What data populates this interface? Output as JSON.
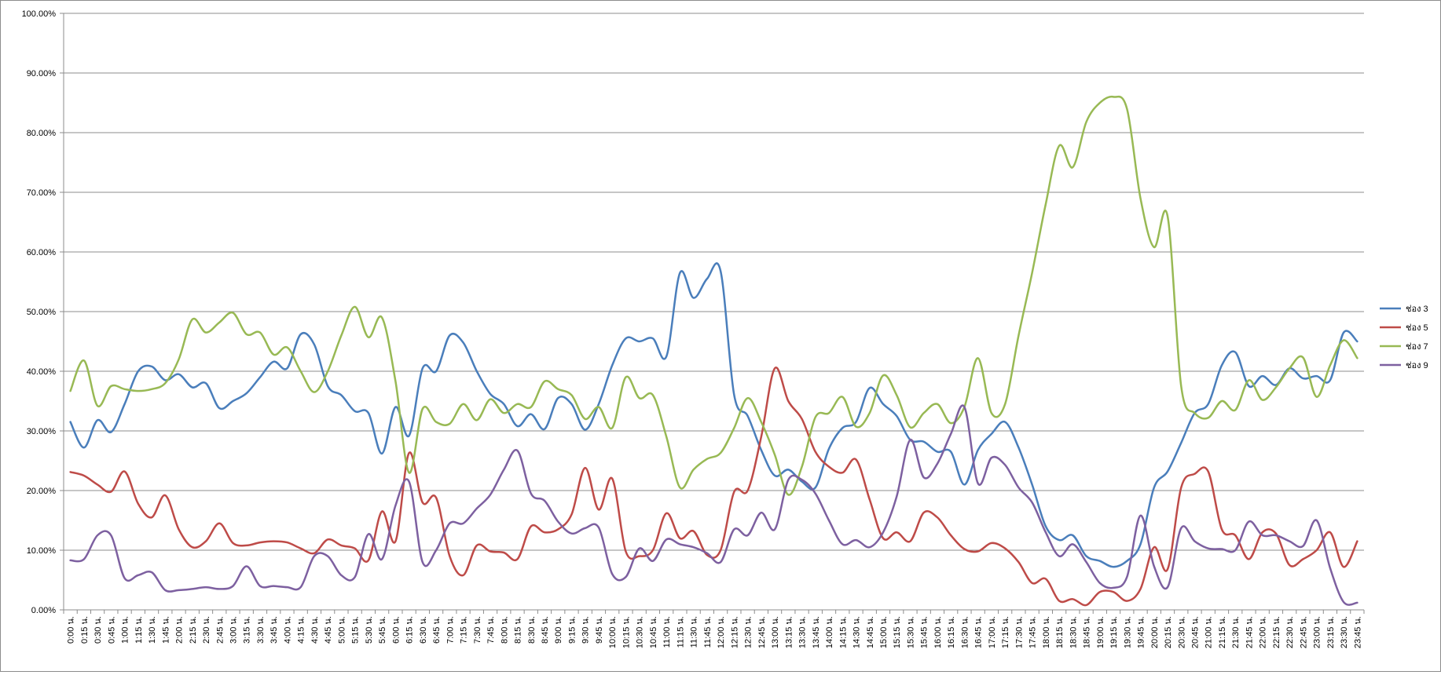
{
  "chart_data": {
    "type": "line",
    "ylim": [
      0,
      1
    ],
    "y_ticks": [
      "0.00%",
      "10.00%",
      "20.00%",
      "30.00%",
      "40.00%",
      "50.00%",
      "60.00%",
      "70.00%",
      "80.00%",
      "90.00%",
      "100.00%"
    ],
    "grid": true,
    "legend_position": "right",
    "categories": [
      "0:00 น.",
      "0:15 น.",
      "0:30 น.",
      "0:45 น.",
      "1:00 น.",
      "1:15 น.",
      "1:30 น.",
      "1:45 น.",
      "2:00 น.",
      "2:15 น.",
      "2:30 น.",
      "2:45 น.",
      "3:00 น.",
      "3:15 น.",
      "3:30 น.",
      "3:45 น.",
      "4:00 น.",
      "4:15 น.",
      "4:30 น.",
      "4:45 น.",
      "5:00 น.",
      "5:15 น.",
      "5:30 น.",
      "5:45 น.",
      "6:00 น.",
      "6:15 น.",
      "6:30 น.",
      "6:45 น.",
      "7:00 น.",
      "7:15 น.",
      "7:30 น.",
      "7:45 น.",
      "8:00 น.",
      "8:15 น.",
      "8:30 น.",
      "8:45 น.",
      "9:00 น.",
      "9:15 น.",
      "9:30 น.",
      "9:45 น.",
      "10:00 น.",
      "10:15 น.",
      "10:30 น.",
      "10:45 น.",
      "11:00 น.",
      "11:15 น.",
      "11:30 น.",
      "11:45 น.",
      "12:00 น.",
      "12:15 น.",
      "12:30 น.",
      "12:45 น.",
      "13:00 น.",
      "13:15 น.",
      "13:30 น.",
      "13:45 น.",
      "14:00 น.",
      "14:15 น.",
      "14:30 น.",
      "14:45 น.",
      "15:00 น.",
      "15:15 น.",
      "15:30 น.",
      "15:45 น.",
      "16:00 น.",
      "16:15 น.",
      "16:30 น.",
      "16:45 น.",
      "17:00 น.",
      "17:15 น.",
      "17:30 น.",
      "17:45 น.",
      "18:00 น.",
      "18:15 น.",
      "18:30 น.",
      "18:45 น.",
      "19:00 น.",
      "19:15 น.",
      "19:30 น.",
      "19:45 น.",
      "20:00 น.",
      "20:15 น.",
      "20:30 น.",
      "20:45 น.",
      "21:00 น.",
      "21:15 น.",
      "21:30 น.",
      "21:45 น.",
      "22:00 น.",
      "22:15 น.",
      "22:30 น.",
      "22:45 น.",
      "23:00 น.",
      "23:15 น.",
      "23:30 น.",
      "23:45 น."
    ],
    "series": [
      {
        "name": "ช่อง 3",
        "color": "#4a7ebb",
        "values": [
          0.315,
          0.272,
          0.318,
          0.298,
          0.345,
          0.4,
          0.408,
          0.385,
          0.395,
          0.373,
          0.38,
          0.338,
          0.35,
          0.363,
          0.39,
          0.416,
          0.405,
          0.462,
          0.445,
          0.375,
          0.36,
          0.333,
          0.33,
          0.262,
          0.34,
          0.292,
          0.405,
          0.4,
          0.46,
          0.448,
          0.4,
          0.362,
          0.345,
          0.308,
          0.328,
          0.303,
          0.355,
          0.345,
          0.302,
          0.345,
          0.41,
          0.455,
          0.45,
          0.455,
          0.425,
          0.565,
          0.523,
          0.555,
          0.568,
          0.36,
          0.325,
          0.268,
          0.225,
          0.235,
          0.215,
          0.205,
          0.27,
          0.305,
          0.315,
          0.372,
          0.345,
          0.325,
          0.285,
          0.282,
          0.265,
          0.265,
          0.21,
          0.268,
          0.295,
          0.315,
          0.272,
          0.21,
          0.14,
          0.117,
          0.125,
          0.09,
          0.082,
          0.072,
          0.082,
          0.11,
          0.205,
          0.232,
          0.28,
          0.33,
          0.345,
          0.41,
          0.432,
          0.375,
          0.392,
          0.377,
          0.405,
          0.388,
          0.392,
          0.385,
          0.465,
          0.45
        ]
      },
      {
        "name": "ช่อง 5",
        "color": "#be4b48",
        "values": [
          0.231,
          0.225,
          0.21,
          0.198,
          0.232,
          0.178,
          0.155,
          0.192,
          0.135,
          0.105,
          0.115,
          0.145,
          0.112,
          0.108,
          0.113,
          0.115,
          0.113,
          0.103,
          0.095,
          0.118,
          0.108,
          0.103,
          0.083,
          0.165,
          0.115,
          0.263,
          0.18,
          0.188,
          0.09,
          0.058,
          0.108,
          0.098,
          0.096,
          0.085,
          0.14,
          0.13,
          0.135,
          0.16,
          0.238,
          0.168,
          0.22,
          0.098,
          0.09,
          0.1,
          0.162,
          0.12,
          0.132,
          0.092,
          0.1,
          0.198,
          0.2,
          0.29,
          0.405,
          0.35,
          0.32,
          0.265,
          0.24,
          0.23,
          0.252,
          0.185,
          0.12,
          0.13,
          0.115,
          0.163,
          0.155,
          0.125,
          0.102,
          0.098,
          0.112,
          0.103,
          0.08,
          0.045,
          0.052,
          0.015,
          0.018,
          0.008,
          0.03,
          0.03,
          0.015,
          0.035,
          0.105,
          0.068,
          0.205,
          0.228,
          0.232,
          0.135,
          0.125,
          0.085,
          0.13,
          0.128,
          0.075,
          0.085,
          0.1,
          0.13,
          0.072,
          0.115
        ]
      },
      {
        "name": "ช่อง 7",
        "color": "#98b954",
        "values": [
          0.367,
          0.418,
          0.342,
          0.375,
          0.37,
          0.367,
          0.37,
          0.38,
          0.42,
          0.487,
          0.465,
          0.482,
          0.498,
          0.462,
          0.465,
          0.428,
          0.44,
          0.4,
          0.365,
          0.4,
          0.46,
          0.508,
          0.457,
          0.49,
          0.383,
          0.23,
          0.337,
          0.315,
          0.312,
          0.345,
          0.318,
          0.353,
          0.33,
          0.345,
          0.34,
          0.383,
          0.37,
          0.36,
          0.32,
          0.34,
          0.305,
          0.39,
          0.355,
          0.36,
          0.29,
          0.205,
          0.235,
          0.253,
          0.263,
          0.305,
          0.355,
          0.315,
          0.26,
          0.193,
          0.24,
          0.323,
          0.33,
          0.357,
          0.307,
          0.33,
          0.393,
          0.36,
          0.306,
          0.33,
          0.345,
          0.313,
          0.34,
          0.422,
          0.33,
          0.345,
          0.46,
          0.565,
          0.68,
          0.778,
          0.742,
          0.818,
          0.85,
          0.86,
          0.84,
          0.69,
          0.608,
          0.66,
          0.375,
          0.33,
          0.322,
          0.35,
          0.335,
          0.385,
          0.352,
          0.373,
          0.405,
          0.423,
          0.357,
          0.41,
          0.452,
          0.422
        ]
      },
      {
        "name": "ช่อง 9",
        "color": "#7d60a0",
        "values": [
          0.083,
          0.085,
          0.125,
          0.125,
          0.053,
          0.058,
          0.063,
          0.033,
          0.033,
          0.035,
          0.038,
          0.035,
          0.04,
          0.073,
          0.04,
          0.04,
          0.038,
          0.038,
          0.09,
          0.09,
          0.058,
          0.055,
          0.127,
          0.085,
          0.175,
          0.215,
          0.08,
          0.1,
          0.145,
          0.145,
          0.17,
          0.193,
          0.235,
          0.267,
          0.195,
          0.183,
          0.148,
          0.128,
          0.137,
          0.138,
          0.06,
          0.055,
          0.103,
          0.082,
          0.118,
          0.11,
          0.105,
          0.095,
          0.08,
          0.135,
          0.125,
          0.163,
          0.135,
          0.218,
          0.218,
          0.195,
          0.15,
          0.11,
          0.117,
          0.105,
          0.13,
          0.19,
          0.285,
          0.222,
          0.245,
          0.295,
          0.34,
          0.212,
          0.255,
          0.243,
          0.205,
          0.18,
          0.13,
          0.09,
          0.11,
          0.08,
          0.045,
          0.037,
          0.055,
          0.158,
          0.073,
          0.038,
          0.137,
          0.115,
          0.103,
          0.102,
          0.1,
          0.148,
          0.125,
          0.125,
          0.115,
          0.107,
          0.15,
          0.07,
          0.013,
          0.012
        ]
      }
    ]
  }
}
